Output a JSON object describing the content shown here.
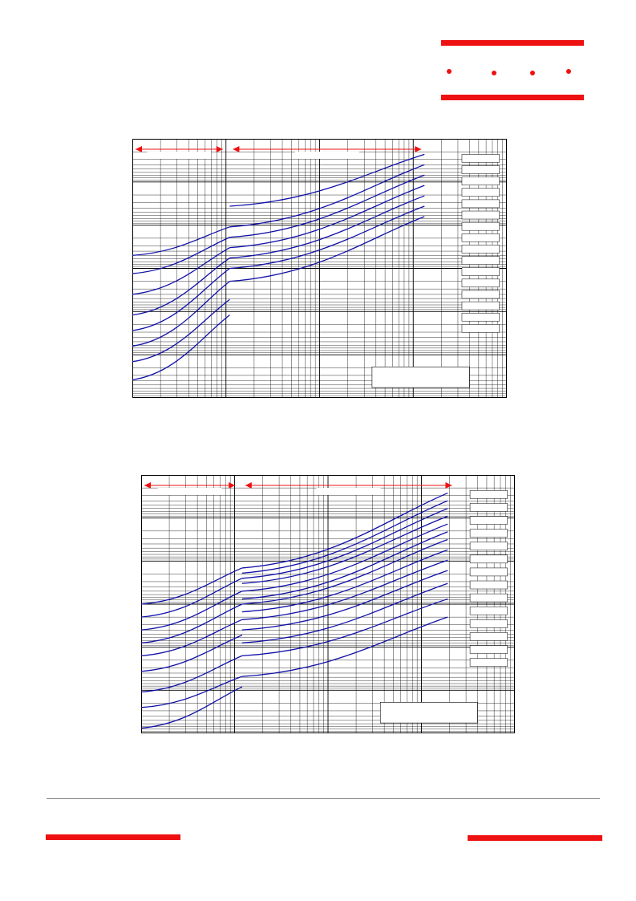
{
  "colors": {
    "brand_red": "#ee1111",
    "curve_blue": "#1010a8",
    "grid": "#000000",
    "divider": "#808080"
  },
  "header": {
    "logo_dots": 4
  },
  "chart_data": [
    {
      "type": "line",
      "xscale": "log",
      "yscale": "log",
      "grid": true,
      "regions": [
        {
          "x": [
            0,
            0.25
          ],
          "marker": "arrow"
        },
        {
          "x": [
            0.26,
            0.78
          ],
          "marker": "arrow"
        }
      ],
      "label_boxes": 16,
      "legend_box": "bottom-right",
      "series": [
        {
          "pts": [
            [
              0.26,
              0.26
            ],
            [
              0.78,
              0.06
            ]
          ]
        },
        {
          "pts": [
            [
              0.26,
              0.34
            ],
            [
              0.78,
              0.1
            ]
          ]
        },
        {
          "pts": [
            [
              0.26,
              0.38
            ],
            [
              0.78,
              0.14
            ]
          ]
        },
        {
          "pts": [
            [
              0.26,
              0.42
            ],
            [
              0.78,
              0.18
            ]
          ]
        },
        {
          "pts": [
            [
              0.26,
              0.46
            ],
            [
              0.78,
              0.22
            ]
          ]
        },
        {
          "pts": [
            [
              0.26,
              0.5
            ],
            [
              0.78,
              0.26
            ]
          ]
        },
        {
          "pts": [
            [
              0.26,
              0.55
            ],
            [
              0.78,
              0.3
            ]
          ]
        },
        {
          "pts": [
            [
              0.0,
              0.45
            ],
            [
              0.26,
              0.34
            ]
          ]
        },
        {
          "pts": [
            [
              0.0,
              0.52
            ],
            [
              0.26,
              0.38
            ]
          ]
        },
        {
          "pts": [
            [
              0.0,
              0.6
            ],
            [
              0.26,
              0.42
            ]
          ]
        },
        {
          "pts": [
            [
              0.0,
              0.68
            ],
            [
              0.26,
              0.46
            ]
          ]
        },
        {
          "pts": [
            [
              0.0,
              0.74
            ],
            [
              0.26,
              0.5
            ]
          ]
        },
        {
          "pts": [
            [
              0.0,
              0.8
            ],
            [
              0.26,
              0.55
            ]
          ]
        },
        {
          "pts": [
            [
              0.0,
              0.86
            ],
            [
              0.26,
              0.62
            ]
          ]
        },
        {
          "pts": [
            [
              0.0,
              0.93
            ],
            [
              0.26,
              0.68
            ]
          ]
        }
      ]
    },
    {
      "type": "line",
      "xscale": "log",
      "yscale": "log",
      "grid": true,
      "regions": [
        {
          "x": [
            0,
            0.26
          ],
          "marker": "arrow"
        },
        {
          "x": [
            0.27,
            0.84
          ],
          "marker": "arrow"
        }
      ],
      "label_boxes": 14,
      "legend_box": "bottom-right",
      "series": [
        {
          "pts": [
            [
              0.27,
              0.36
            ],
            [
              0.82,
              0.07
            ]
          ]
        },
        {
          "pts": [
            [
              0.27,
              0.38
            ],
            [
              0.82,
              0.1
            ]
          ]
        },
        {
          "pts": [
            [
              0.27,
              0.4
            ],
            [
              0.82,
              0.13
            ]
          ]
        },
        {
          "pts": [
            [
              0.27,
              0.42
            ],
            [
              0.82,
              0.16
            ]
          ]
        },
        {
          "pts": [
            [
              0.27,
              0.45
            ],
            [
              0.82,
              0.19
            ]
          ]
        },
        {
          "pts": [
            [
              0.27,
              0.48
            ],
            [
              0.82,
              0.22
            ]
          ]
        },
        {
          "pts": [
            [
              0.27,
              0.5
            ],
            [
              0.82,
              0.25
            ]
          ]
        },
        {
          "pts": [
            [
              0.27,
              0.53
            ],
            [
              0.82,
              0.29
            ]
          ]
        },
        {
          "pts": [
            [
              0.27,
              0.56
            ],
            [
              0.82,
              0.33
            ]
          ]
        },
        {
          "pts": [
            [
              0.27,
              0.6
            ],
            [
              0.82,
              0.37
            ]
          ]
        },
        {
          "pts": [
            [
              0.27,
              0.65
            ],
            [
              0.82,
              0.42
            ]
          ]
        },
        {
          "pts": [
            [
              0.27,
              0.7
            ],
            [
              0.82,
              0.48
            ]
          ]
        },
        {
          "pts": [
            [
              0.27,
              0.78
            ],
            [
              0.82,
              0.55
            ]
          ]
        },
        {
          "pts": [
            [
              0.0,
              0.5
            ],
            [
              0.27,
              0.36
            ]
          ]
        },
        {
          "pts": [
            [
              0.0,
              0.55
            ],
            [
              0.27,
              0.4
            ]
          ]
        },
        {
          "pts": [
            [
              0.0,
              0.6
            ],
            [
              0.27,
              0.45
            ]
          ]
        },
        {
          "pts": [
            [
              0.0,
              0.65
            ],
            [
              0.27,
              0.5
            ]
          ]
        },
        {
          "pts": [
            [
              0.0,
              0.7
            ],
            [
              0.27,
              0.56
            ]
          ]
        },
        {
          "pts": [
            [
              0.0,
              0.76
            ],
            [
              0.27,
              0.62
            ]
          ]
        },
        {
          "pts": [
            [
              0.0,
              0.84
            ],
            [
              0.27,
              0.7
            ]
          ]
        },
        {
          "pts": [
            [
              0.0,
              0.9
            ],
            [
              0.27,
              0.78
            ]
          ]
        },
        {
          "pts": [
            [
              0.0,
              0.98
            ],
            [
              0.27,
              0.82
            ]
          ]
        }
      ]
    }
  ]
}
